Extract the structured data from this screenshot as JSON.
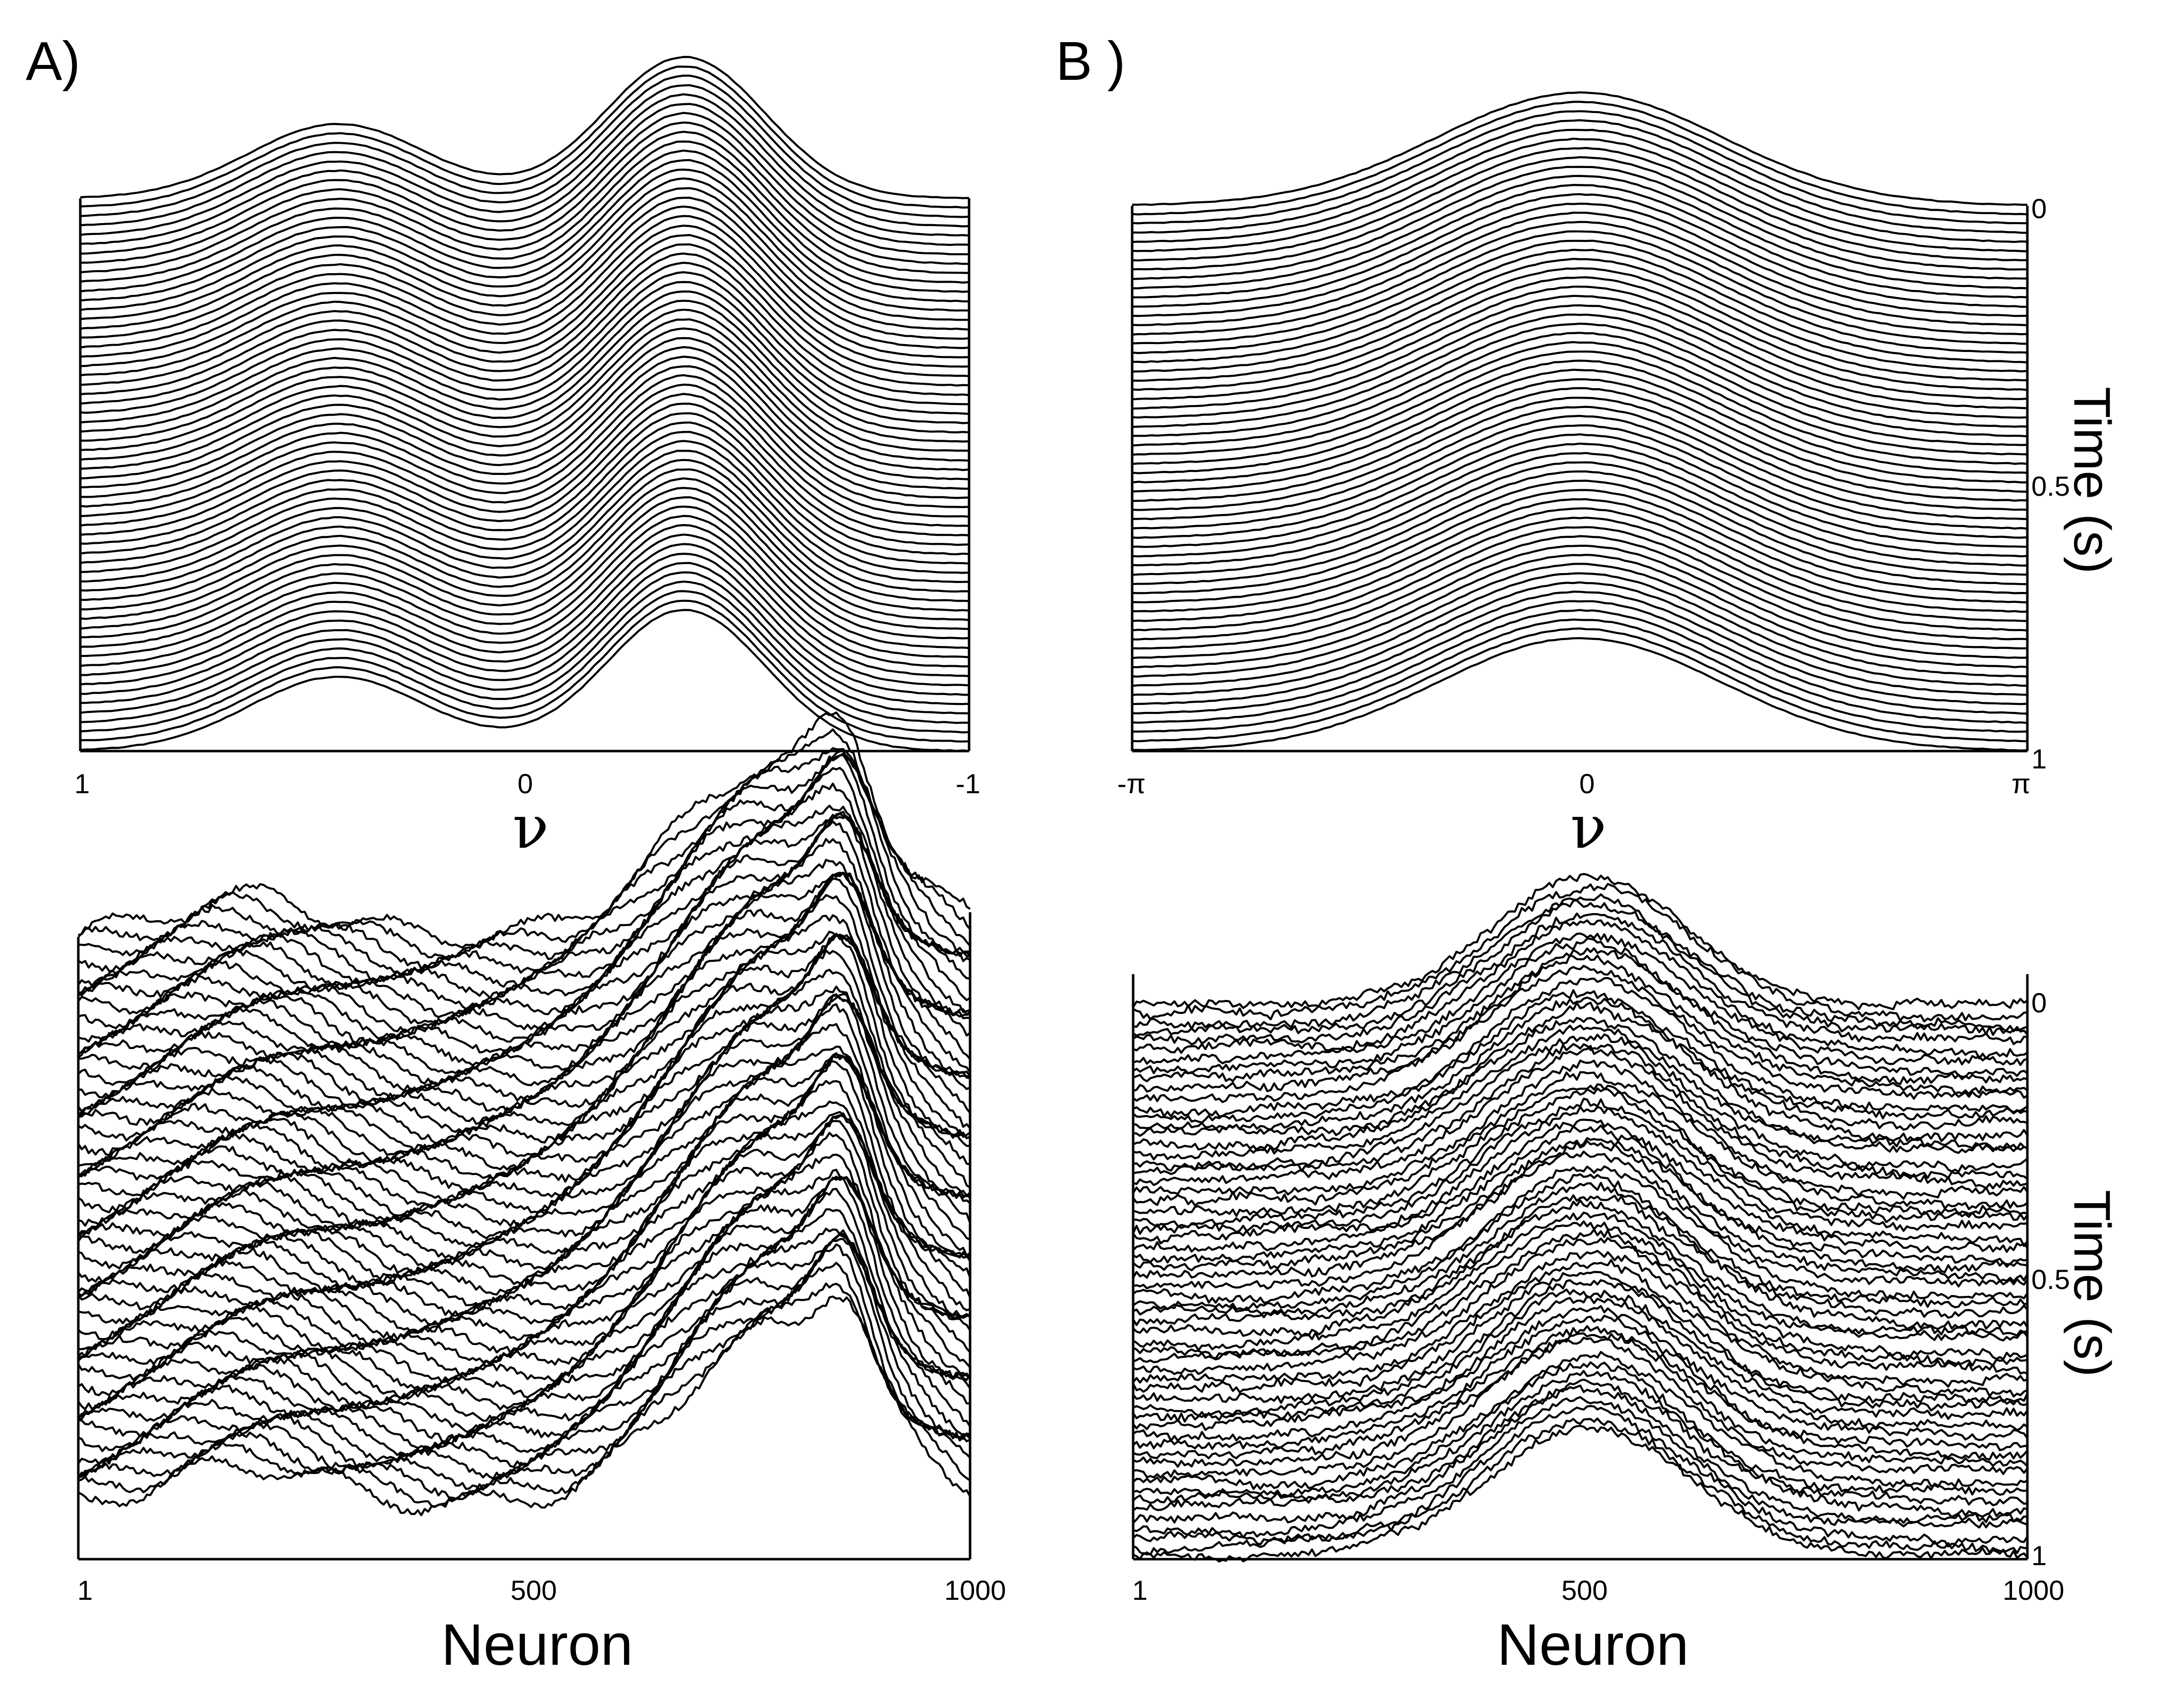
{
  "panel_labels": {
    "a": "A)",
    "b": "B )"
  },
  "chart_data": [
    {
      "id": "A-top",
      "type": "line",
      "style": "waterfall",
      "x_ticks": [
        "1",
        "0",
        "-1"
      ],
      "xlim": [
        1,
        -1
      ],
      "xlabel": "ν",
      "ylabel": "",
      "n_traces": 60,
      "time_range": [
        0,
        1
      ],
      "profile": {
        "kind": "two-bump",
        "bumps": [
          {
            "center": -0.42,
            "amplitude": 0.5,
            "width": 0.2
          },
          {
            "center": 0.36,
            "amplitude": 0.95,
            "width": 0.18
          }
        ]
      },
      "noise": "low"
    },
    {
      "id": "B-top",
      "type": "line",
      "style": "waterfall",
      "x_ticks": [
        "-π",
        "0",
        "π"
      ],
      "xlim": [
        -3.1416,
        3.1416
      ],
      "xlabel": "ν",
      "ylabel": "Time (s)",
      "y_ticks": [
        "0",
        "0.5",
        "1"
      ],
      "ylim": [
        0,
        1
      ],
      "n_traces": 60,
      "profile": {
        "kind": "single-bump",
        "bumps": [
          {
            "center": 0,
            "amplitude": 0.95,
            "width": 1.0
          }
        ]
      },
      "noise": "low"
    },
    {
      "id": "A-bottom",
      "type": "line",
      "style": "waterfall",
      "x_ticks": [
        "1",
        "500",
        "1000"
      ],
      "xlim": [
        1,
        1000
      ],
      "xlabel": "Neuron",
      "ylabel": "",
      "n_traces": 60,
      "time_range": [
        0,
        1
      ],
      "profile": {
        "kind": "rough-two-bump",
        "bumps": [
          {
            "neuron": 190,
            "amplitude": 0.18,
            "width": 90
          },
          {
            "neuron": 780,
            "amplitude": 0.75,
            "width": 110
          },
          {
            "neuron": 860,
            "amplitude": 0.35,
            "width": 30
          }
        ]
      },
      "noise": "high"
    },
    {
      "id": "B-bottom",
      "type": "line",
      "style": "waterfall",
      "x_ticks": [
        "1",
        "500",
        "1000"
      ],
      "xlim": [
        1,
        1000
      ],
      "xlabel": "Neuron",
      "ylabel": "Time (s)",
      "y_ticks": [
        "0",
        "0.5",
        "1"
      ],
      "ylim": [
        0,
        1
      ],
      "n_traces": 60,
      "profile": {
        "kind": "rough-single-bump",
        "bumps": [
          {
            "neuron": 510,
            "amplitude": 0.85,
            "width": 110
          }
        ]
      },
      "noise": "high"
    }
  ]
}
